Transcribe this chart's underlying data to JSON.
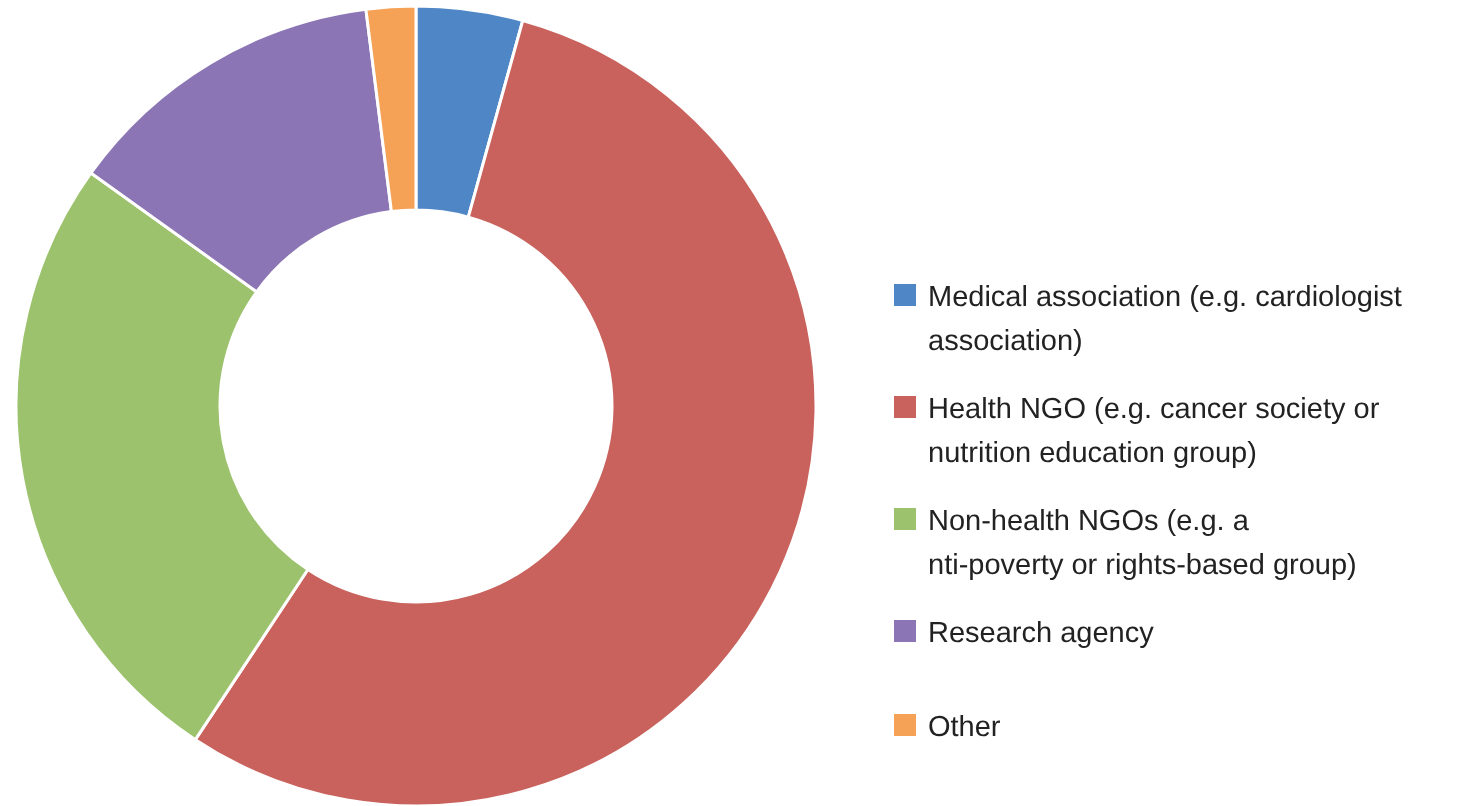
{
  "chart_data": {
    "type": "donut",
    "legend": "right",
    "categories": [
      "Medical association (e.g. cardiologist\nassociation)",
      "Health NGO (e.g. cancer society or\nnutrition education group)",
      "Non-health NGOs (e.g. a\nnti-poverty or rights-based group)",
      "Research agency",
      "Other"
    ],
    "values": [
      4.3,
      55,
      25.6,
      13.1,
      2
    ],
    "colors": [
      "#4f86c6",
      "#c9625c",
      "#9dc26e",
      "#8b75b4",
      "#f5a257"
    ]
  }
}
